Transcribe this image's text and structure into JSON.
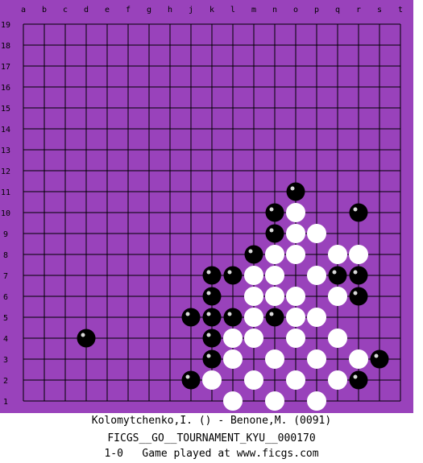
{
  "board": {
    "size": 19,
    "columns": [
      "a",
      "b",
      "c",
      "d",
      "e",
      "f",
      "g",
      "h",
      "j",
      "k",
      "l",
      "m",
      "n",
      "o",
      "p",
      "q",
      "r",
      "s",
      "t"
    ],
    "rows": [
      "19",
      "18",
      "17",
      "16",
      "15",
      "14",
      "13",
      "12",
      "11",
      "10",
      "9",
      "8",
      "7",
      "6",
      "5",
      "4",
      "3",
      "2",
      "1"
    ],
    "black_stones": [
      "o11",
      "n10",
      "r10",
      "n9",
      "m8",
      "k7",
      "l7",
      "q7",
      "r7",
      "k6",
      "r6",
      "j5",
      "k5",
      "l5",
      "n5",
      "d4",
      "k4",
      "k3",
      "s3",
      "j2",
      "r2"
    ],
    "white_stones": [
      "o10",
      "o9",
      "p9",
      "n8",
      "o8",
      "q8",
      "r8",
      "m7",
      "n7",
      "p7",
      "m6",
      "n6",
      "o6",
      "q6",
      "m5",
      "o5",
      "p5",
      "l4",
      "m4",
      "o4",
      "q4",
      "l3",
      "n3",
      "p3",
      "r3",
      "k2",
      "m2",
      "o2",
      "q2",
      "l1",
      "n1",
      "p1"
    ]
  },
  "colors": {
    "board_background": "#9942bb",
    "grid_line": "#000000",
    "black_stone": "#000000",
    "white_stone": "#ffffff"
  },
  "footer": {
    "players": "Kolomytchenko,I. () - Benone,M. (0091)",
    "event": "FICGS__GO__TOURNAMENT_KYU__000170",
    "result_line": "1-0   Game played at www.ficgs.com"
  }
}
